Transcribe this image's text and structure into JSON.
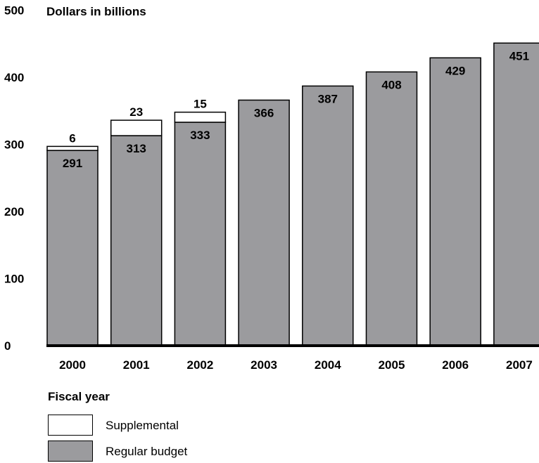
{
  "chart_data": {
    "type": "bar",
    "stacked": true,
    "title": "Dollars in billions",
    "xlabel": "Fiscal year",
    "categories": [
      "2000",
      "2001",
      "2002",
      "2003",
      "2004",
      "2005",
      "2006",
      "2007"
    ],
    "series": [
      {
        "name": "Regular budget",
        "values": [
          291,
          313,
          333,
          366,
          387,
          408,
          429,
          451
        ],
        "color": "#9b9b9e"
      },
      {
        "name": "Supplemental",
        "values": [
          6,
          23,
          15,
          0,
          0,
          0,
          0,
          0
        ],
        "color": "#ffffff"
      }
    ],
    "data_labels": {
      "regular": [
        "291",
        "313",
        "333",
        "366",
        "387",
        "408",
        "429",
        "451"
      ],
      "supplemental": [
        "6",
        "23",
        "15",
        "",
        "",
        "",
        "",
        ""
      ]
    },
    "yticks": [
      "0",
      "100",
      "200",
      "300",
      "400",
      "500"
    ],
    "ylim": [
      0,
      500
    ],
    "grid": false,
    "legend_position": "bottom-left"
  }
}
